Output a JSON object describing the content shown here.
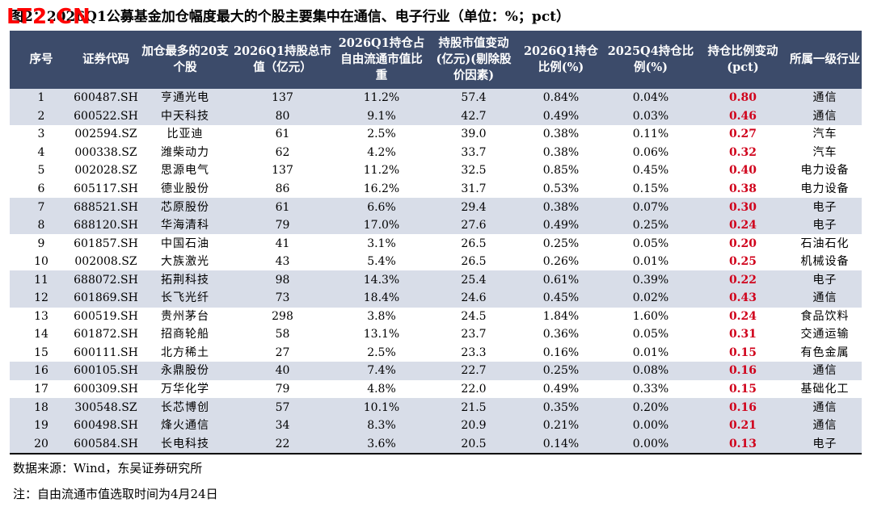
{
  "watermark": "LT2.CN",
  "title": "图2：2026Q1公募基金加仓幅度最大的个股主要集中在通信、电子行业（单位：%；pct）",
  "headers": [
    "序号",
    "证券代码",
    "加仓最多的20支个股",
    "2026Q1持股总市值（亿元）",
    "2026Q1持仓占自由流通市值比重",
    "持股市值变动(亿元)(剔除股价因素)",
    "2026Q1持仓比例(%)",
    "2025Q4持仓比例(%)",
    "持仓比例变动(pct)",
    "所属一级行业"
  ],
  "rows": [
    [
      "1",
      "600487.SH",
      "亨通光电",
      "137",
      "11.2%",
      "57.4",
      "0.84%",
      "0.04%",
      "0.80",
      "通信"
    ],
    [
      "2",
      "600522.SH",
      "中天科技",
      "80",
      "9.1%",
      "42.7",
      "0.49%",
      "0.03%",
      "0.46",
      "通信"
    ],
    [
      "3",
      "002594.SZ",
      "比亚迪",
      "61",
      "2.5%",
      "39.0",
      "0.38%",
      "0.11%",
      "0.27",
      "汽车"
    ],
    [
      "4",
      "000338.SZ",
      "潍柴动力",
      "62",
      "4.2%",
      "33.7",
      "0.38%",
      "0.06%",
      "0.32",
      "汽车"
    ],
    [
      "5",
      "002028.SZ",
      "思源电气",
      "137",
      "11.2%",
      "32.5",
      "0.85%",
      "0.45%",
      "0.40",
      "电力设备"
    ],
    [
      "6",
      "605117.SH",
      "德业股份",
      "86",
      "16.2%",
      "31.7",
      "0.53%",
      "0.15%",
      "0.38",
      "电力设备"
    ],
    [
      "7",
      "688521.SH",
      "芯原股份",
      "61",
      "6.6%",
      "29.4",
      "0.38%",
      "0.07%",
      "0.30",
      "电子"
    ],
    [
      "8",
      "688120.SH",
      "华海清科",
      "79",
      "17.0%",
      "27.6",
      "0.49%",
      "0.25%",
      "0.24",
      "电子"
    ],
    [
      "9",
      "601857.SH",
      "中国石油",
      "41",
      "3.1%",
      "26.5",
      "0.25%",
      "0.05%",
      "0.20",
      "石油石化"
    ],
    [
      "10",
      "002008.SZ",
      "大族激光",
      "43",
      "5.4%",
      "26.5",
      "0.26%",
      "0.01%",
      "0.25",
      "机械设备"
    ],
    [
      "11",
      "688072.SH",
      "拓荆科技",
      "98",
      "14.3%",
      "25.4",
      "0.61%",
      "0.39%",
      "0.22",
      "电子"
    ],
    [
      "12",
      "601869.SH",
      "长飞光纤",
      "73",
      "18.4%",
      "24.6",
      "0.45%",
      "0.02%",
      "0.43",
      "通信"
    ],
    [
      "13",
      "600519.SH",
      "贵州茅台",
      "298",
      "3.8%",
      "24.5",
      "1.84%",
      "1.60%",
      "0.24",
      "食品饮料"
    ],
    [
      "14",
      "601872.SH",
      "招商轮船",
      "58",
      "13.1%",
      "23.7",
      "0.36%",
      "0.05%",
      "0.31",
      "交通运输"
    ],
    [
      "15",
      "600111.SH",
      "北方稀土",
      "27",
      "2.5%",
      "23.3",
      "0.16%",
      "0.01%",
      "0.15",
      "有色金属"
    ],
    [
      "16",
      "600105.SH",
      "永鼎股份",
      "40",
      "7.4%",
      "22.7",
      "0.25%",
      "0.08%",
      "0.16",
      "通信"
    ],
    [
      "17",
      "600309.SH",
      "万华化学",
      "79",
      "4.8%",
      "22.0",
      "0.49%",
      "0.33%",
      "0.15",
      "基础化工"
    ],
    [
      "18",
      "300548.SZ",
      "长芯博创",
      "57",
      "10.1%",
      "21.5",
      "0.35%",
      "0.20%",
      "0.16",
      "通信"
    ],
    [
      "19",
      "600498.SH",
      "烽火通信",
      "34",
      "8.3%",
      "20.9",
      "0.21%",
      "0.00%",
      "0.21",
      "通信"
    ],
    [
      "20",
      "600584.SH",
      "长电科技",
      "22",
      "3.6%",
      "20.5",
      "0.14%",
      "0.00%",
      "0.13",
      "电子"
    ]
  ],
  "shaded_rows": [
    1,
    2,
    7,
    8,
    11,
    12,
    16,
    18,
    19,
    20
  ],
  "colors": {
    "header_bg": "#3c4b6a",
    "shade": "#d8dde8",
    "highlight": "#d0021b"
  },
  "source": "数据来源：Wind，东吴证券研究所",
  "note": "注：自由流通市值选取时间为4月24日"
}
